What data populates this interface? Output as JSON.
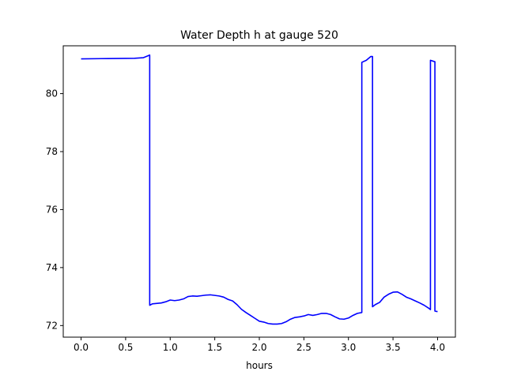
{
  "chart_data": {
    "type": "line",
    "title": "Water Depth h at gauge 520",
    "xlabel": "hours",
    "ylabel": "",
    "xlim": [
      -0.2,
      4.2
    ],
    "ylim": [
      71.6,
      81.65
    ],
    "xticks": [
      0.0,
      0.5,
      1.0,
      1.5,
      2.0,
      2.5,
      3.0,
      3.5,
      4.0
    ],
    "xtick_labels": [
      "0.0",
      "0.5",
      "1.0",
      "1.5",
      "2.0",
      "2.5",
      "3.0",
      "3.5",
      "4.0"
    ],
    "yticks": [
      72,
      74,
      76,
      78,
      80
    ],
    "ytick_labels": [
      "72",
      "74",
      "76",
      "78",
      "80"
    ],
    "grid": false,
    "series": [
      {
        "color": "#0000ff",
        "x": [
          0.0,
          0.3,
          0.6,
          0.7,
          0.77,
          0.77,
          0.8,
          0.9,
          0.95,
          1.0,
          1.05,
          1.1,
          1.15,
          1.2,
          1.25,
          1.3,
          1.35,
          1.4,
          1.45,
          1.5,
          1.55,
          1.6,
          1.65,
          1.7,
          1.75,
          1.8,
          1.85,
          1.9,
          1.95,
          2.0,
          2.05,
          2.1,
          2.15,
          2.2,
          2.25,
          2.3,
          2.35,
          2.4,
          2.45,
          2.5,
          2.55,
          2.6,
          2.65,
          2.7,
          2.75,
          2.8,
          2.85,
          2.9,
          2.95,
          3.0,
          3.05,
          3.1,
          3.15,
          3.15,
          3.2,
          3.25,
          3.27,
          3.27,
          3.3,
          3.35,
          3.4,
          3.45,
          3.5,
          3.55,
          3.6,
          3.65,
          3.7,
          3.75,
          3.8,
          3.85,
          3.9,
          3.92,
          3.92,
          3.97,
          3.97,
          4.0
        ],
        "y": [
          81.2,
          81.21,
          81.22,
          81.24,
          81.33,
          72.7,
          72.75,
          72.78,
          72.82,
          72.88,
          72.86,
          72.88,
          72.92,
          73.0,
          73.02,
          73.01,
          73.03,
          73.05,
          73.06,
          73.04,
          73.02,
          72.98,
          72.9,
          72.85,
          72.72,
          72.56,
          72.45,
          72.35,
          72.25,
          72.15,
          72.12,
          72.07,
          72.05,
          72.05,
          72.07,
          72.13,
          72.22,
          72.28,
          72.3,
          72.33,
          72.38,
          72.35,
          72.38,
          72.42,
          72.42,
          72.38,
          72.3,
          72.23,
          72.22,
          72.26,
          72.35,
          72.42,
          72.45,
          81.08,
          81.15,
          81.28,
          81.28,
          72.65,
          72.72,
          72.8,
          72.98,
          73.08,
          73.15,
          73.16,
          73.08,
          72.98,
          72.92,
          72.85,
          72.78,
          72.7,
          72.6,
          72.55,
          81.15,
          81.1,
          72.5,
          72.48
        ]
      }
    ]
  }
}
